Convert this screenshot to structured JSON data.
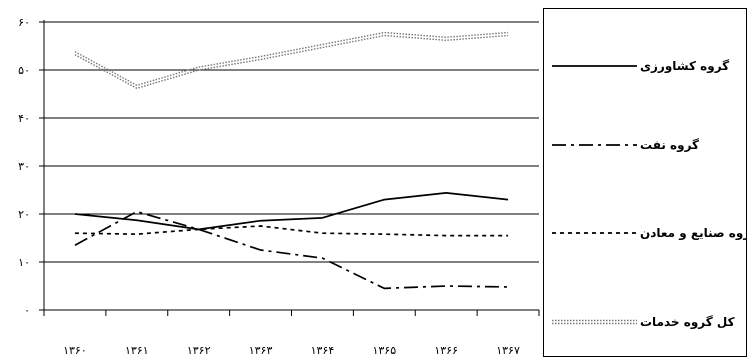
{
  "chart_data": {
    "type": "line",
    "x": [
      "۱۳۶۰",
      "۱۳۶۱",
      "۱۳۶۲",
      "۱۳۶۳",
      "۱۳۶۴",
      "۱۳۶۵",
      "۱۳۶۶",
      "۱۳۶۷"
    ],
    "y_ticks": [
      "۰",
      "۱۰",
      "۲۰",
      "۳۰",
      "۴۰",
      "۵۰",
      "۶۰"
    ],
    "ylim": [
      0,
      60
    ],
    "grid": "horizontal",
    "legend_position": "right",
    "series": [
      {
        "name": "گروه کشاورزی",
        "style": "solid",
        "values": [
          20,
          18.7,
          16.8,
          18.6,
          19.2,
          23,
          24.4,
          23
        ]
      },
      {
        "name": "گروه نفت",
        "style": "dash-dot",
        "values": [
          13.5,
          20.5,
          16.8,
          12.5,
          10.8,
          4.5,
          5,
          4.8
        ]
      },
      {
        "name": "گروه صنایع و معادن",
        "style": "dotted",
        "values": [
          16,
          15.8,
          16.8,
          17.5,
          16,
          15.8,
          15.5,
          15.5
        ]
      },
      {
        "name": "کل گروه خدمات",
        "style": "double-dotted",
        "values": [
          53.5,
          46.5,
          50.3,
          52.5,
          55,
          57.5,
          56.5,
          57.5
        ]
      }
    ]
  }
}
